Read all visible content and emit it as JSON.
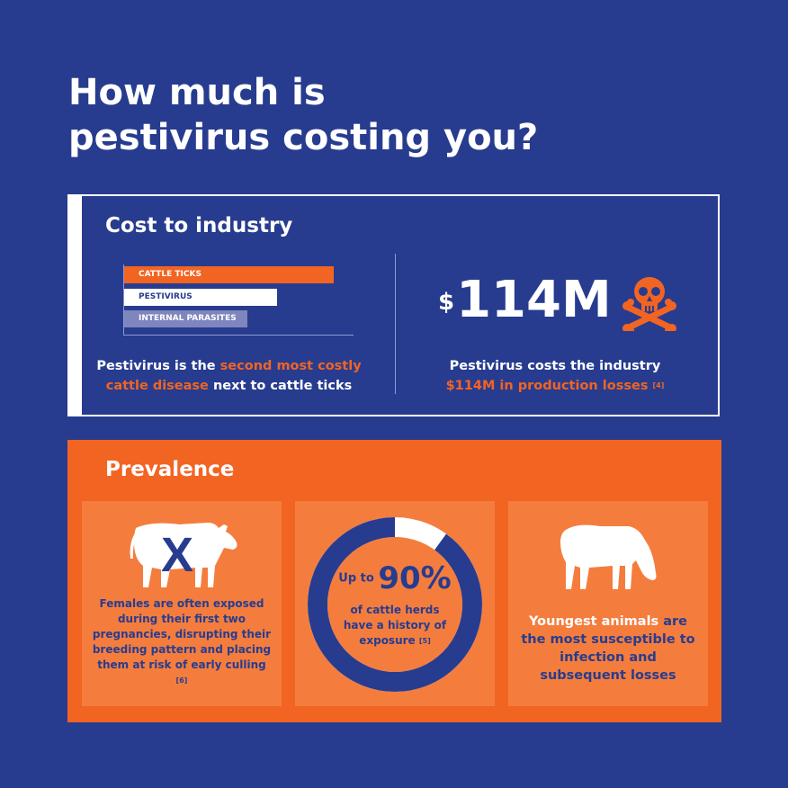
{
  "title": {
    "line1": "How much is",
    "line2": "pestivirus costing you?"
  },
  "cost": {
    "heading": "Cost to industry",
    "bars": [
      {
        "label": "CATTLE TICKS",
        "rank": 1,
        "color": "#f26422"
      },
      {
        "label": "PESTIVIRUS",
        "rank": 2,
        "color": "#ffffff"
      },
      {
        "label": "INTERNAL PARASITES",
        "rank": 3,
        "color": "#7f86be"
      }
    ],
    "left_text": {
      "part1": "Pestivirus is the ",
      "highlight": "second most costly cattle disease",
      "part2": " next to cattle ticks"
    },
    "big_number": {
      "currency": "$",
      "value": "114M"
    },
    "right_text": {
      "line1": "Pestivirus costs the industry",
      "highlight": "$114M in production losses",
      "ref": "[4]"
    },
    "icon": "skull-crossbones-icon"
  },
  "prevalence": {
    "heading": "Prevalence",
    "card1": {
      "icon": "cow-with-x-icon",
      "mark": "X",
      "text": "Females are often exposed during their first two pregnancies, disrupting their breeding pattern and placing them at risk of early culling",
      "ref": "[6]"
    },
    "card2": {
      "up_to": "Up to",
      "percent": "90%",
      "percent_value": 90,
      "text": "of cattle herds have a history of exposure",
      "ref": "[5]"
    },
    "card3": {
      "icon": "grazing-cow-icon",
      "highlight": "Youngest animals",
      "text": " are the most susceptible to infection and subsequent losses"
    }
  },
  "colors": {
    "background": "#273c8f",
    "accent": "#f26422",
    "card": "#f47d3e"
  }
}
